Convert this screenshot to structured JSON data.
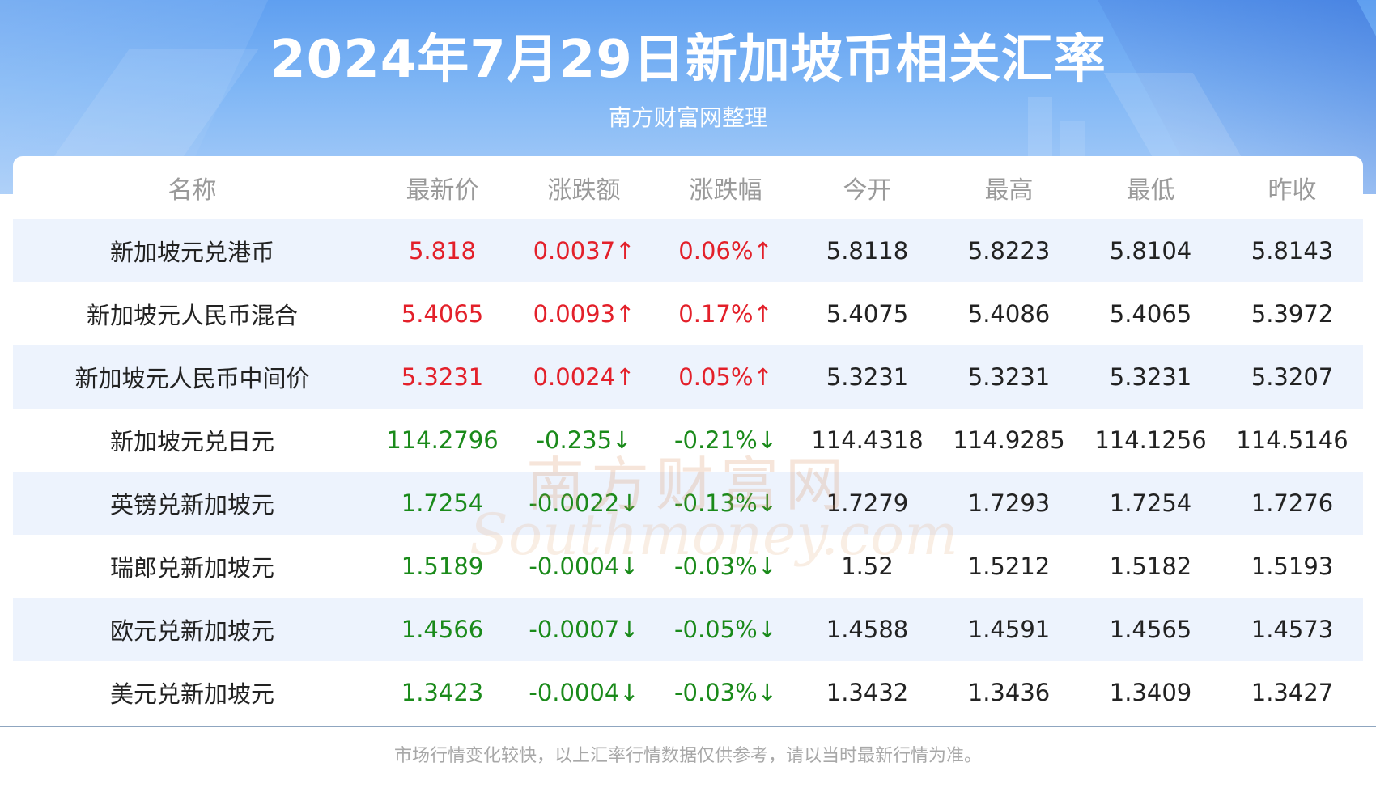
{
  "header": {
    "title": "2024年7月29日新加坡币相关汇率",
    "subtitle": "南方财富网整理"
  },
  "columns": [
    "名称",
    "最新价",
    "涨跌额",
    "涨跌幅",
    "今开",
    "最高",
    "最低",
    "昨收"
  ],
  "rows": [
    {
      "name": "新加坡元兑港币",
      "latest": "5.818",
      "change": "0.0037↑",
      "change_pct": "0.06%↑",
      "open": "5.8118",
      "high": "5.8223",
      "low": "5.8104",
      "prev_close": "5.8143",
      "direction": "up"
    },
    {
      "name": "新加坡元人民币混合",
      "latest": "5.4065",
      "change": "0.0093↑",
      "change_pct": "0.17%↑",
      "open": "5.4075",
      "high": "5.4086",
      "low": "5.4065",
      "prev_close": "5.3972",
      "direction": "up"
    },
    {
      "name": "新加坡元人民币中间价",
      "latest": "5.3231",
      "change": "0.0024↑",
      "change_pct": "0.05%↑",
      "open": "5.3231",
      "high": "5.3231",
      "low": "5.3231",
      "prev_close": "5.3207",
      "direction": "up"
    },
    {
      "name": "新加坡元兑日元",
      "latest": "114.2796",
      "change": "-0.235↓",
      "change_pct": "-0.21%↓",
      "open": "114.4318",
      "high": "114.9285",
      "low": "114.1256",
      "prev_close": "114.5146",
      "direction": "down"
    },
    {
      "name": "英镑兑新加坡元",
      "latest": "1.7254",
      "change": "-0.0022↓",
      "change_pct": "-0.13%↓",
      "open": "1.7279",
      "high": "1.7293",
      "low": "1.7254",
      "prev_close": "1.7276",
      "direction": "down"
    },
    {
      "name": "瑞郎兑新加坡元",
      "latest": "1.5189",
      "change": "-0.0004↓",
      "change_pct": "-0.03%↓",
      "open": "1.52",
      "high": "1.5212",
      "low": "1.5182",
      "prev_close": "1.5193",
      "direction": "down"
    },
    {
      "name": "欧元兑新加坡元",
      "latest": "1.4566",
      "change": "-0.0007↓",
      "change_pct": "-0.05%↓",
      "open": "1.4588",
      "high": "1.4591",
      "low": "1.4565",
      "prev_close": "1.4573",
      "direction": "down"
    },
    {
      "name": "美元兑新加坡元",
      "latest": "1.3423",
      "change": "-0.0004↓",
      "change_pct": "-0.03%↓",
      "open": "1.3432",
      "high": "1.3436",
      "low": "1.3409",
      "prev_close": "1.3427",
      "direction": "down"
    }
  ],
  "footer": "市场行情变化较快，以上汇率行情数据仅供参考，请以当时最新行情为准。",
  "watermark": {
    "cn": "南方财富网",
    "en": "Southmoney.com"
  },
  "colors": {
    "up": "#e3202a",
    "down": "#1a8a1a",
    "header_blue": "#5f9ff0",
    "row_shade": "#edf3fd"
  }
}
